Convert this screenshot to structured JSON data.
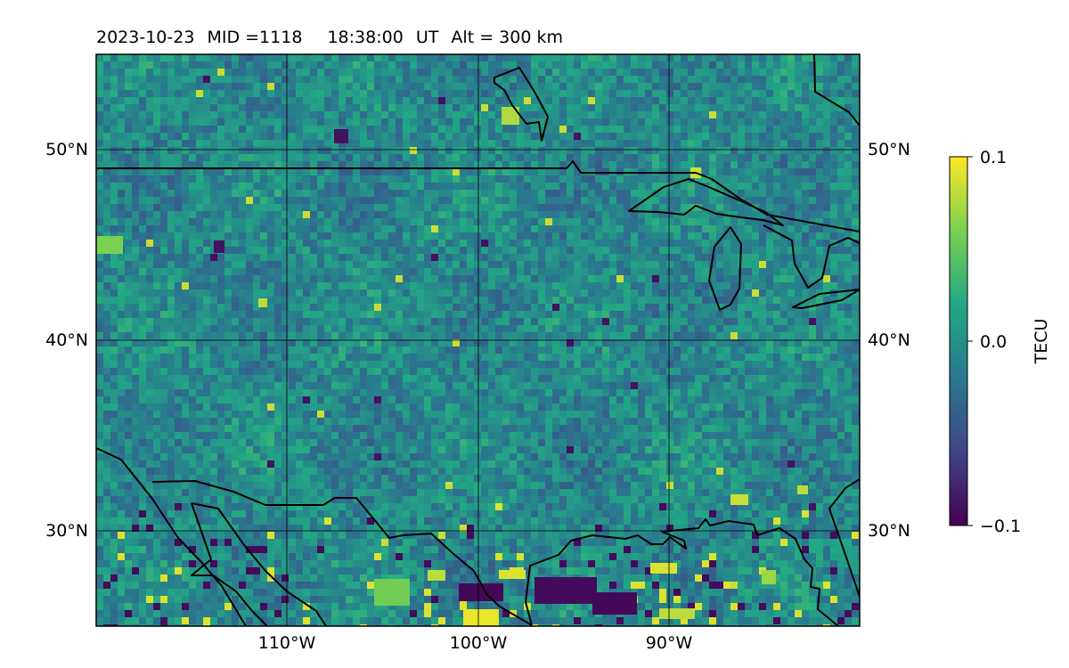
{
  "header": {
    "date": "2023-10-23",
    "mid": "MID =1118",
    "time": "18:38:00",
    "time_unit": "UT",
    "altitude": "Alt = 300 km"
  },
  "map": {
    "lon_ticks": [
      "110°W",
      "100°W",
      "90°W"
    ],
    "lat_ticks_left": [
      "50°N",
      "40°N",
      "30°N"
    ],
    "lat_ticks_right": [
      "50°N",
      "40°N",
      "30°N"
    ],
    "extent": {
      "lon": [
        -120,
        -80
      ],
      "lat": [
        25,
        55
      ]
    },
    "lon_values": [
      -110,
      -100,
      -90
    ],
    "lat_values": [
      50,
      40,
      30
    ],
    "gridlines": true,
    "colormap": "viridis"
  },
  "colorbar": {
    "label": "TECU",
    "ticks": [
      "0.1",
      "0.0",
      "−0.1"
    ],
    "tick_values": [
      0.1,
      0.0,
      -0.1
    ],
    "range": [
      -0.1,
      0.1
    ],
    "colors": [
      "#440154",
      "#414487",
      "#2a788e",
      "#22a884",
      "#7ad151",
      "#fde725"
    ]
  },
  "features": [
    {
      "region": "southeast",
      "pattern": "yellow and dark-purple hot spots"
    },
    {
      "region": "southeast coast",
      "pattern": "dark purple patches near 96°W 27°N"
    },
    {
      "region": "north",
      "pattern": "green-teal mottled"
    }
  ]
}
